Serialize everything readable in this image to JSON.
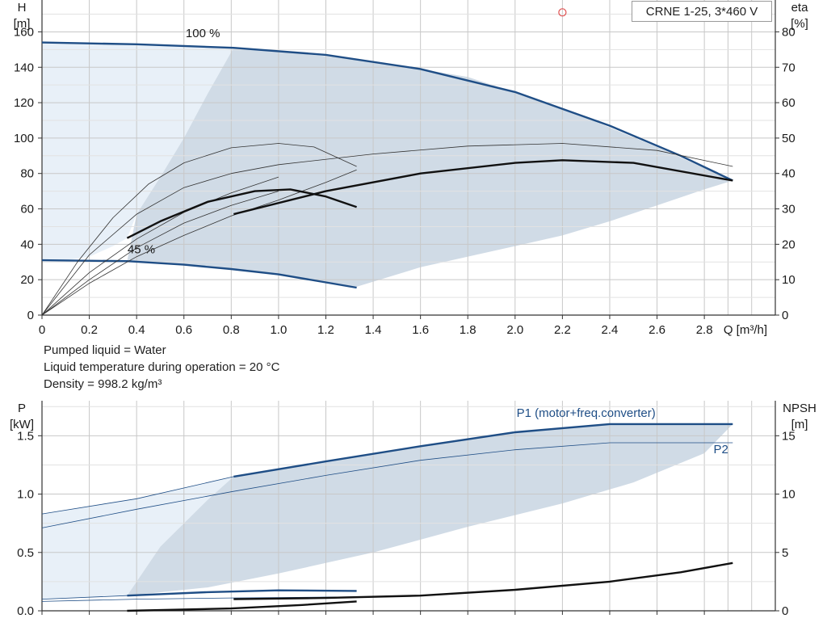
{
  "pump_title": "CRNE 1-25, 3*460 V",
  "info_lines": [
    "Pumped liquid = Water",
    "Liquid temperature during operation = 20 °C",
    "Density = 998.2 kg/m³"
  ],
  "colors": {
    "grid": "#c8c8c8",
    "axis": "#333333",
    "region_light": "#e8f0f8",
    "region_dark": "#d0dbe6",
    "curve_blue": "#1f4e86",
    "curve_black": "#111111",
    "duty_point": "#e05050"
  },
  "chart_data": [
    {
      "type": "line",
      "name": "head-eta-chart",
      "x_label": "Q [m³/h]",
      "y_label_left": [
        "H",
        "[m]"
      ],
      "y_label_right": [
        "eta",
        "[%]"
      ],
      "x_ticks": [
        0,
        0.2,
        0.4,
        0.6,
        0.8,
        1.0,
        1.2,
        1.4,
        1.6,
        1.8,
        2.0,
        2.2,
        2.4,
        2.6,
        2.8
      ],
      "x_tick_labels": [
        "0",
        "0.2",
        "0.4",
        "0.6",
        "0.8",
        "1.0",
        "1.2",
        "1.4",
        "1.6",
        "1.8",
        "2.0",
        "2.2",
        "2.4",
        "2.6",
        "2.8"
      ],
      "y_left_ticks": [
        0,
        20,
        40,
        60,
        80,
        100,
        120,
        140,
        160
      ],
      "y_left_tick_labels": [
        "0",
        "20",
        "40",
        "60",
        "80",
        "100",
        "120",
        "140",
        "160"
      ],
      "y_right_ticks": [
        0,
        10,
        20,
        30,
        40,
        50,
        60,
        70,
        80
      ],
      "y_right_tick_labels": [
        "0",
        "10",
        "20",
        "30",
        "40",
        "50",
        "60",
        "70",
        "80"
      ],
      "xlim": [
        0,
        3.1
      ],
      "ylim_left": [
        0,
        178
      ],
      "ylim_right": [
        0,
        89
      ],
      "speed_labels": [
        {
          "text": "100 %",
          "x": 0.68,
          "y": 157
        },
        {
          "text": "45 %",
          "x": 0.42,
          "y": 35
        }
      ],
      "regions": {
        "light": [
          [
            0,
            154
          ],
          [
            0.2,
            153.6
          ],
          [
            0.4,
            153
          ],
          [
            0.6,
            152.2
          ],
          [
            0.81,
            151
          ],
          [
            0.7,
            125
          ],
          [
            0.6,
            100
          ],
          [
            0.5,
            78
          ],
          [
            0.4,
            57
          ],
          [
            0.36,
            43.5
          ],
          [
            0.3,
            39
          ],
          [
            0.2,
            33
          ],
          [
            0.1,
            31
          ],
          [
            0,
            31
          ]
        ],
        "dark": [
          [
            0.81,
            151
          ],
          [
            1.0,
            149
          ],
          [
            1.4,
            143.5
          ],
          [
            1.8,
            134.5
          ],
          [
            2.2,
            117
          ],
          [
            2.6,
            95
          ],
          [
            2.92,
            76
          ],
          [
            2.8,
            71
          ],
          [
            2.6,
            62
          ],
          [
            2.4,
            53
          ],
          [
            2.2,
            45
          ],
          [
            2.0,
            39
          ],
          [
            1.6,
            27
          ],
          [
            1.33,
            16
          ],
          [
            1.0,
            23
          ],
          [
            0.6,
            28.5
          ],
          [
            0.36,
            30.5
          ],
          [
            0.4,
            57
          ],
          [
            0.5,
            78
          ],
          [
            0.6,
            100
          ],
          [
            0.7,
            125
          ]
        ]
      },
      "series": [
        {
          "name": "H 100 %",
          "axis": "left",
          "style": "blue",
          "points": [
            [
              0,
              154
            ],
            [
              0.4,
              153
            ],
            [
              0.81,
              151
            ],
            [
              1.2,
              147
            ],
            [
              1.6,
              139
            ],
            [
              2.0,
              126
            ],
            [
              2.4,
              107
            ],
            [
              2.7,
              90
            ],
            [
              2.92,
              76
            ]
          ]
        },
        {
          "name": "H 45 %",
          "axis": "left",
          "style": "blue",
          "points": [
            [
              0,
              31
            ],
            [
              0.36,
              30.5
            ],
            [
              0.6,
              28.5
            ],
            [
              0.8,
              26
            ],
            [
              1.0,
              23
            ],
            [
              1.2,
              18.5
            ],
            [
              1.33,
              15.5
            ]
          ]
        },
        {
          "name": "eta 100 %",
          "axis": "left",
          "style": "thin",
          "points": [
            [
              0,
              0
            ],
            [
              0.2,
              34
            ],
            [
              0.4,
              57
            ],
            [
              0.6,
              72
            ],
            [
              0.8,
              80
            ],
            [
              1.0,
              85
            ],
            [
              1.4,
              91
            ],
            [
              1.8,
              95.5
            ],
            [
              2.2,
              97
            ],
            [
              2.6,
              93
            ],
            [
              2.92,
              84
            ]
          ]
        },
        {
          "name": "eta 45 %",
          "axis": "left",
          "style": "thin",
          "points": [
            [
              0,
              0
            ],
            [
              0.15,
              30
            ],
            [
              0.3,
              55
            ],
            [
              0.45,
              74
            ],
            [
              0.6,
              86
            ],
            [
              0.8,
              94.5
            ],
            [
              1.0,
              97
            ],
            [
              1.15,
              95
            ],
            [
              1.33,
              84
            ]
          ]
        },
        {
          "name": "eta reference 1",
          "axis": "left",
          "style": "thin",
          "points": [
            [
              0,
              0
            ],
            [
              0.2,
              20
            ],
            [
              0.4,
              38
            ],
            [
              0.6,
              52
            ],
            [
              0.8,
              62
            ],
            [
              1.0,
              70
            ]
          ]
        },
        {
          "name": "eta reference 2",
          "axis": "left",
          "style": "thin",
          "points": [
            [
              0,
              0
            ],
            [
              0.2,
              18
            ],
            [
              0.4,
              33
            ],
            [
              0.6,
              45
            ],
            [
              0.8,
              56
            ],
            [
              1.0,
              65
            ],
            [
              1.2,
              75
            ],
            [
              1.33,
              82
            ]
          ]
        },
        {
          "name": "eta ref 3",
          "axis": "left",
          "style": "thin",
          "points": [
            [
              0,
              0
            ],
            [
              0.2,
              24
            ],
            [
              0.4,
              43
            ],
            [
              0.6,
              58
            ],
            [
              0.8,
              69
            ],
            [
              1.0,
              78
            ]
          ]
        },
        {
          "name": "eta working 45 %",
          "axis": "left",
          "style": "black",
          "points": [
            [
              0.36,
              43.5
            ],
            [
              0.5,
              53
            ],
            [
              0.7,
              64
            ],
            [
              0.9,
              70
            ],
            [
              1.05,
              71
            ],
            [
              1.2,
              67
            ],
            [
              1.33,
              61
            ]
          ]
        },
        {
          "name": "eta working 100 %",
          "axis": "left",
          "style": "black",
          "points": [
            [
              0.81,
              57
            ],
            [
              1.2,
              70
            ],
            [
              1.6,
              80
            ],
            [
              2.0,
              86
            ],
            [
              2.2,
              87.5
            ],
            [
              2.5,
              86
            ],
            [
              2.92,
              76
            ]
          ]
        }
      ],
      "duty_point": {
        "x": 2.2,
        "y": 171
      }
    },
    {
      "type": "line",
      "name": "power-npsh-chart",
      "x_ticks": [
        0,
        0.2,
        0.4,
        0.6,
        0.8,
        1.0,
        1.2,
        1.4,
        1.6,
        1.8,
        2.0,
        2.2,
        2.4,
        2.6,
        2.8
      ],
      "y_label_left": [
        "P",
        "[kW]"
      ],
      "y_label_right": [
        "NPSH",
        "[m]"
      ],
      "y_left_ticks": [
        0,
        0.5,
        1.0,
        1.5
      ],
      "y_left_tick_labels": [
        "0.0",
        "0.5",
        "1.0",
        "1.5"
      ],
      "y_right_ticks": [
        0,
        5,
        10,
        15
      ],
      "y_right_tick_labels": [
        "0",
        "5",
        "10",
        "15"
      ],
      "xlim": [
        0,
        3.1
      ],
      "ylim_left": [
        0,
        1.8
      ],
      "ylim_right": [
        0,
        18
      ],
      "series_labels": [
        {
          "text": "P1 (motor+freq.converter)",
          "x": 2.3,
          "y": 1.66
        },
        {
          "text": "P2",
          "x": 2.87,
          "y": 1.35
        }
      ],
      "regions": {
        "light": [
          [
            0,
            0.83
          ],
          [
            0.4,
            0.96
          ],
          [
            0.81,
            1.15
          ],
          [
            0.7,
            0.95
          ],
          [
            0.5,
            0.55
          ],
          [
            0.36,
            0.13
          ],
          [
            0,
            0.1
          ]
        ],
        "dark": [
          [
            0.81,
            1.15
          ],
          [
            1.2,
            1.28
          ],
          [
            1.6,
            1.41
          ],
          [
            2.0,
            1.53
          ],
          [
            2.4,
            1.6
          ],
          [
            2.92,
            1.6
          ],
          [
            2.8,
            1.35
          ],
          [
            2.5,
            1.1
          ],
          [
            2.2,
            0.92
          ],
          [
            1.8,
            0.72
          ],
          [
            1.4,
            0.5
          ],
          [
            1.0,
            0.32
          ],
          [
            0.7,
            0.2
          ],
          [
            0.36,
            0.13
          ],
          [
            0.5,
            0.55
          ],
          [
            0.7,
            0.95
          ]
        ]
      },
      "series": [
        {
          "name": "P1 (motor+freq.converter)",
          "axis": "left",
          "style": "blue",
          "points": [
            [
              0.81,
              1.15
            ],
            [
              1.2,
              1.28
            ],
            [
              1.6,
              1.41
            ],
            [
              2.0,
              1.53
            ],
            [
              2.4,
              1.6
            ],
            [
              2.92,
              1.6
            ]
          ]
        },
        {
          "name": "P1 extension",
          "axis": "left",
          "style": "thin",
          "points": [
            [
              0,
              0.83
            ],
            [
              0.4,
              0.96
            ],
            [
              0.81,
              1.15
            ]
          ]
        },
        {
          "name": "P2",
          "axis": "left",
          "style": "thin",
          "points": [
            [
              0,
              0.71
            ],
            [
              0.4,
              0.87
            ],
            [
              0.8,
              1.02
            ],
            [
              1.2,
              1.16
            ],
            [
              1.6,
              1.29
            ],
            [
              2.0,
              1.38
            ],
            [
              2.4,
              1.44
            ],
            [
              2.92,
              1.44
            ]
          ]
        },
        {
          "name": "P1 45 %",
          "axis": "left",
          "style": "blue",
          "points": [
            [
              0.36,
              0.13
            ],
            [
              0.7,
              0.16
            ],
            [
              1.0,
              0.175
            ],
            [
              1.33,
              0.17
            ]
          ]
        },
        {
          "name": "P1 45 % extension",
          "axis": "left",
          "style": "thin",
          "points": [
            [
              0,
              0.1
            ],
            [
              0.36,
              0.13
            ]
          ]
        },
        {
          "name": "P2 45 %",
          "axis": "left",
          "style": "thin",
          "points": [
            [
              0,
              0.08
            ],
            [
              0.4,
              0.1
            ],
            [
              0.8,
              0.11
            ],
            [
              1.33,
              0.12
            ]
          ]
        },
        {
          "name": "NPSH 100 %",
          "axis": "left",
          "style": "black",
          "points": [
            [
              0.81,
              0.1
            ],
            [
              1.2,
              0.11
            ],
            [
              1.6,
              0.13
            ],
            [
              2.0,
              0.18
            ],
            [
              2.4,
              0.25
            ],
            [
              2.7,
              0.33
            ],
            [
              2.92,
              0.41
            ]
          ]
        },
        {
          "name": "NPSH 45 %",
          "axis": "left",
          "style": "black",
          "points": [
            [
              0.36,
              0.0
            ],
            [
              0.8,
              0.02
            ],
            [
              1.1,
              0.05
            ],
            [
              1.33,
              0.08
            ]
          ]
        }
      ]
    }
  ]
}
